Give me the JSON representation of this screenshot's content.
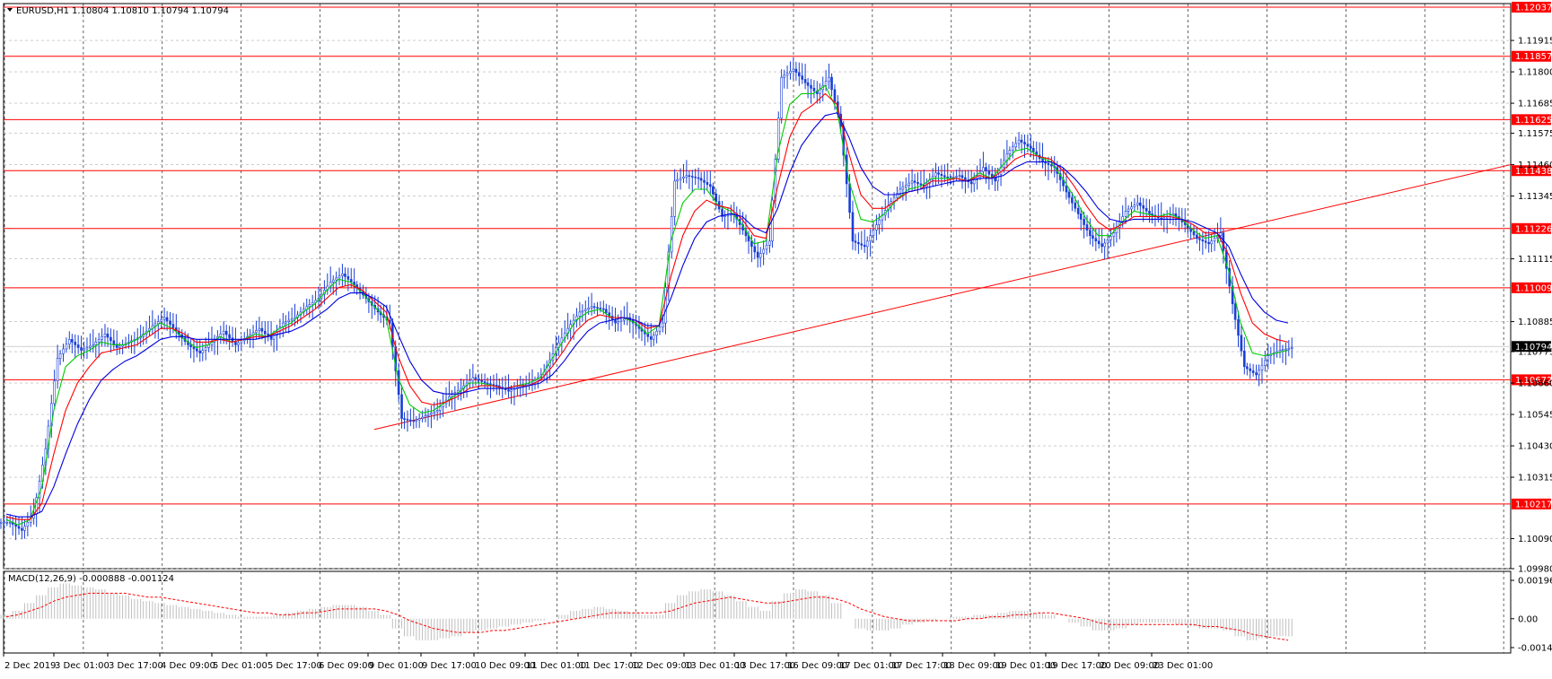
{
  "header": {
    "symbol": "EURUSD,H1",
    "ohlc": "1.10804 1.10810 1.10794 1.10794"
  },
  "macd_header": {
    "label": "MACD(12,26,9) -0.000888 -0.001124"
  },
  "colors": {
    "candle": "#1a3fd6",
    "ma_fast": "#00cc00",
    "ma_mid": "#ff0000",
    "ma_slow": "#0000dd",
    "level_line": "#ff0000",
    "level_tag_bg": "#ff0000",
    "price_tag_bg": "#000000",
    "macd_hist": "#bfbfbf",
    "macd_signal": "#ff0000"
  },
  "chart_data": [
    {
      "type": "line",
      "title": "EURUSD,H1",
      "x_tick_labels": [
        "2 Dec 2019",
        "3 Dec 01:00",
        "3 Dec 17:00",
        "4 Dec 09:00",
        "5 Dec 01:00",
        "5 Dec 17:00",
        "6 Dec 09:00",
        "9 Dec 01:00",
        "9 Dec 17:00",
        "10 Dec 09:00",
        "11 Dec 01:00",
        "11 Dec 17:00",
        "12 Dec 09:00",
        "13 Dec 01:00",
        "13 Dec 17:00",
        "16 Dec 09:00",
        "17 Dec 01:00",
        "17 Dec 17:00",
        "18 Dec 09:00",
        "19 Dec 01:00",
        "19 Dec 17:00",
        "20 Dec 09:00",
        "23 Dec 01:00"
      ],
      "y_tick_labels": [
        "1.11915",
        "1.11800",
        "1.11685",
        "1.11575",
        "1.11460",
        "1.11345",
        "1.11115",
        "1.10885",
        "1.10775",
        "1.10660",
        "1.10545",
        "1.10430",
        "1.10315",
        "1.10090",
        "1.09980"
      ],
      "ylim": [
        1.0998,
        1.1205
      ],
      "horizontal_levels": [
        "1.12037",
        "1.11857",
        "1.11625",
        "1.11438",
        "1.11226",
        "1.11009",
        "1.10672",
        "1.10217"
      ],
      "current_price": "1.10794",
      "trendline": {
        "from": [
          "6 Dec 09:00",
          1.1049
        ],
        "to": [
          "23 Dec 13:00",
          1.1146
        ]
      },
      "series": [
        {
          "name": "",
          "role": "close",
          "values": [
            1.1015,
            1.1012,
            1.1018,
            1.1042,
            1.1075,
            1.1082,
            1.1078,
            1.108,
            1.1084,
            1.1079,
            1.1081,
            1.1083,
            1.1087,
            1.109,
            1.1085,
            1.108,
            1.1077,
            1.1081,
            1.1085,
            1.108,
            1.1083,
            1.1086,
            1.1082,
            1.1088,
            1.109,
            1.1094,
            1.1097,
            1.1103,
            1.1106,
            1.1102,
            1.1097,
            1.1092,
            1.1088,
            1.1053,
            1.1052,
            1.1054,
            1.1056,
            1.1061,
            1.1064,
            1.1068,
            1.1066,
            1.1065,
            1.1063,
            1.1065,
            1.1066,
            1.107,
            1.1079,
            1.1086,
            1.1092,
            1.1094,
            1.1093,
            1.1088,
            1.109,
            1.1086,
            1.1082,
            1.1088,
            1.114,
            1.1142,
            1.1141,
            1.1138,
            1.1127,
            1.1128,
            1.112,
            1.1112,
            1.1118,
            1.1178,
            1.1181,
            1.1176,
            1.1172,
            1.1178,
            1.116,
            1.1118,
            1.1116,
            1.1124,
            1.1131,
            1.1137,
            1.114,
            1.1138,
            1.1143,
            1.1141,
            1.1142,
            1.1139,
            1.1145,
            1.114,
            1.115,
            1.1155,
            1.1152,
            1.1147,
            1.1145,
            1.1136,
            1.1128,
            1.112,
            1.1116,
            1.1121,
            1.1129,
            1.1132,
            1.1128,
            1.1126,
            1.1128,
            1.1124,
            1.1119,
            1.1117,
            1.1121,
            1.1095,
            1.1072,
            1.1069,
            1.1076,
            1.1078,
            1.1079
          ]
        },
        {
          "name": "",
          "role": "ma_fast",
          "values": [
            1.1016,
            1.1014,
            1.1016,
            1.1028,
            1.1056,
            1.1072,
            1.1076,
            1.1078,
            1.1081,
            1.108,
            1.108,
            1.1082,
            1.1085,
            1.1088,
            1.1086,
            1.1082,
            1.1079,
            1.108,
            1.1083,
            1.1081,
            1.1082,
            1.1084,
            1.1083,
            1.1086,
            1.1088,
            1.1092,
            1.1095,
            1.11,
            1.1104,
            1.1103,
            1.1099,
            1.1094,
            1.109,
            1.1068,
            1.1058,
            1.1055,
            1.1056,
            1.1059,
            1.1062,
            1.1066,
            1.1066,
            1.1065,
            1.1064,
            1.1065,
            1.1066,
            1.1068,
            1.1075,
            1.1082,
            1.1089,
            1.1092,
            1.1093,
            1.109,
            1.109,
            1.1088,
            1.1084,
            1.1087,
            1.1118,
            1.1132,
            1.1137,
            1.1137,
            1.1131,
            1.1129,
            1.1124,
            1.1117,
            1.1118,
            1.115,
            1.1168,
            1.1172,
            1.1172,
            1.1175,
            1.1166,
            1.114,
            1.1126,
            1.1125,
            1.1128,
            1.1133,
            1.1137,
            1.1138,
            1.1141,
            1.1141,
            1.1141,
            1.114,
            1.1143,
            1.1141,
            1.1146,
            1.1151,
            1.1152,
            1.1149,
            1.1147,
            1.1141,
            1.1134,
            1.1126,
            1.112,
            1.112,
            1.1125,
            1.1129,
            1.1128,
            1.1127,
            1.1128,
            1.1126,
            1.1122,
            1.1119,
            1.112,
            1.1107,
            1.1088,
            1.1077,
            1.1076,
            1.1077,
            1.1078
          ]
        },
        {
          "name": "",
          "role": "ma_mid",
          "values": [
            1.1017,
            1.1016,
            1.1016,
            1.1022,
            1.104,
            1.1056,
            1.1066,
            1.1072,
            1.1077,
            1.1078,
            1.1079,
            1.108,
            1.1083,
            1.1086,
            1.1086,
            1.1084,
            1.1081,
            1.1081,
            1.1082,
            1.1081,
            1.1082,
            1.1083,
            1.1083,
            1.1085,
            1.1087,
            1.109,
            1.1093,
            1.1097,
            1.1101,
            1.1102,
            1.11,
            1.1096,
            1.1092,
            1.1076,
            1.1065,
            1.1059,
            1.1058,
            1.1059,
            1.1061,
            1.1064,
            1.1065,
            1.1065,
            1.1064,
            1.1065,
            1.1065,
            1.1067,
            1.1072,
            1.1078,
            1.1085,
            1.1089,
            1.1091,
            1.109,
            1.109,
            1.1089,
            1.1086,
            1.1087,
            1.1105,
            1.112,
            1.1129,
            1.1133,
            1.1131,
            1.113,
            1.1126,
            1.112,
            1.1119,
            1.1138,
            1.1156,
            1.1165,
            1.1168,
            1.1172,
            1.1168,
            1.115,
            1.1135,
            1.113,
            1.113,
            1.1133,
            1.1136,
            1.1137,
            1.114,
            1.114,
            1.1141,
            1.114,
            1.1142,
            1.1141,
            1.1144,
            1.1148,
            1.115,
            1.1149,
            1.1148,
            1.1144,
            1.1138,
            1.1131,
            1.1125,
            1.1122,
            1.1124,
            1.1127,
            1.1127,
            1.1127,
            1.1127,
            1.1126,
            1.1124,
            1.1121,
            1.1121,
            1.1113,
            1.1099,
            1.1088,
            1.1084,
            1.1082,
            1.1081
          ]
        },
        {
          "name": "",
          "role": "ma_slow",
          "values": [
            1.1018,
            1.1017,
            1.1017,
            1.1019,
            1.1028,
            1.104,
            1.1051,
            1.106,
            1.1067,
            1.1071,
            1.1074,
            1.1076,
            1.1079,
            1.1082,
            1.1083,
            1.1083,
            1.1082,
            1.1082,
            1.1082,
            1.1082,
            1.1082,
            1.1082,
            1.1083,
            1.1084,
            1.1085,
            1.1087,
            1.109,
            1.1093,
            1.1097,
            1.1099,
            1.1099,
            1.1097,
            1.1094,
            1.1084,
            1.1074,
            1.1067,
            1.1063,
            1.1062,
            1.1062,
            1.1063,
            1.1064,
            1.1064,
            1.1064,
            1.1064,
            1.1065,
            1.1066,
            1.1069,
            1.1074,
            1.108,
            1.1085,
            1.1088,
            1.1089,
            1.109,
            1.1089,
            1.1087,
            1.1087,
            1.1097,
            1.1109,
            1.1119,
            1.1125,
            1.1127,
            1.1128,
            1.1127,
            1.1123,
            1.1121,
            1.113,
            1.1143,
            1.1153,
            1.1159,
            1.1164,
            1.1165,
            1.1156,
            1.1145,
            1.1138,
            1.1135,
            1.1135,
            1.1136,
            1.1137,
            1.1138,
            1.1139,
            1.114,
            1.114,
            1.1141,
            1.1141,
            1.1142,
            1.1145,
            1.1147,
            1.1147,
            1.1147,
            1.1145,
            1.1141,
            1.1136,
            1.113,
            1.1126,
            1.1125,
            1.1126,
            1.1126,
            1.1126,
            1.1126,
            1.1126,
            1.1125,
            1.1123,
            1.1121,
            1.1116,
            1.1106,
            1.1097,
            1.1092,
            1.1089,
            1.1088
          ]
        }
      ]
    },
    {
      "type": "bar",
      "title": "MACD(12,26,9) -0.000888 -0.001124",
      "y_tick_labels": [
        "0.001961",
        "0.00",
        "-0.001476"
      ],
      "ylim": [
        -0.001476,
        0.001961
      ],
      "series": [
        {
          "name": "",
          "role": "histogram",
          "values": [
            0.0002,
            0.0004,
            0.0008,
            0.0012,
            0.0016,
            0.0018,
            0.0017,
            0.0016,
            0.0015,
            0.0013,
            0.0012,
            0.001,
            0.0009,
            0.0008,
            0.0007,
            0.0006,
            0.0005,
            0.0004,
            0.0003,
            0.0002,
            0.0001,
            0.0001,
            0.0001,
            0.0002,
            0.0003,
            0.0004,
            0.0005,
            0.0006,
            0.0007,
            0.0007,
            0.0006,
            0.0004,
            0.0002,
            -0.0005,
            -0.0009,
            -0.0011,
            -0.0011,
            -0.001,
            -0.0009,
            -0.0007,
            -0.0006,
            -0.0005,
            -0.0004,
            -0.0003,
            -0.0002,
            -0.0001,
            0.0,
            0.0002,
            0.0004,
            0.0005,
            0.0006,
            0.0005,
            0.0004,
            0.0003,
            0.0002,
            0.0002,
            0.0008,
            0.0012,
            0.0014,
            0.0015,
            0.0014,
            0.0012,
            0.0009,
            0.0006,
            0.0004,
            0.0009,
            0.0013,
            0.0015,
            0.0014,
            0.0012,
            0.0008,
            0.0,
            -0.0005,
            -0.0006,
            -0.0006,
            -0.0005,
            -0.0003,
            -0.0002,
            -0.0001,
            0.0,
            0.0001,
            0.0001,
            0.0002,
            0.0002,
            0.0003,
            0.0004,
            0.0004,
            0.0003,
            0.0002,
            0.0,
            -0.0002,
            -0.0004,
            -0.0006,
            -0.0006,
            -0.0005,
            -0.0003,
            -0.0002,
            -0.0002,
            -0.0002,
            -0.0003,
            -0.0004,
            -0.0005,
            -0.0005,
            -0.0006,
            -0.0009,
            -0.0011,
            -0.001,
            -0.0009,
            -0.0009
          ]
        },
        {
          "name": "",
          "role": "signal",
          "values": [
            0.0001,
            0.0002,
            0.0004,
            0.0006,
            0.0009,
            0.0011,
            0.0012,
            0.0013,
            0.0013,
            0.0013,
            0.0013,
            0.0012,
            0.0011,
            0.0011,
            0.001,
            0.0009,
            0.0008,
            0.0007,
            0.0006,
            0.0005,
            0.0004,
            0.0003,
            0.0003,
            0.0002,
            0.0002,
            0.0003,
            0.0003,
            0.0004,
            0.0005,
            0.0005,
            0.0005,
            0.0005,
            0.0004,
            0.0002,
            -0.0001,
            -0.0003,
            -0.0005,
            -0.0006,
            -0.0007,
            -0.0007,
            -0.0007,
            -0.0006,
            -0.0006,
            -0.0005,
            -0.0004,
            -0.0003,
            -0.0002,
            -0.0001,
            0.0,
            0.0001,
            0.0002,
            0.0003,
            0.0003,
            0.0003,
            0.0003,
            0.0003,
            0.0004,
            0.0006,
            0.0008,
            0.0009,
            0.001,
            0.0011,
            0.001,
            0.0009,
            0.0008,
            0.0008,
            0.0009,
            0.001,
            0.0011,
            0.0011,
            0.001,
            0.0008,
            0.0005,
            0.0003,
            0.0001,
            0.0,
            -0.0001,
            -0.0001,
            -0.0001,
            -0.0001,
            -0.0001,
            0.0,
            0.0,
            0.0001,
            0.0001,
            0.0002,
            0.0002,
            0.0003,
            0.0003,
            0.0002,
            0.0001,
            0.0,
            -0.0002,
            -0.0003,
            -0.0003,
            -0.0003,
            -0.0003,
            -0.0003,
            -0.0003,
            -0.0003,
            -0.0003,
            -0.0004,
            -0.0004,
            -0.0005,
            -0.0006,
            -0.0008,
            -0.0009,
            -0.001,
            -0.0011
          ]
        }
      ]
    }
  ]
}
